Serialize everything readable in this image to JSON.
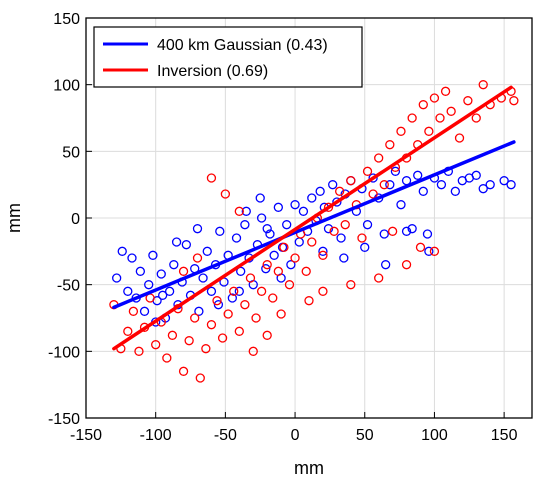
{
  "chart_data": {
    "type": "scatter",
    "xlabel": "mm",
    "ylabel": "mm",
    "xlim": [
      -150,
      170
    ],
    "ylim": [
      -150,
      150
    ],
    "xticks": [
      "-150",
      "-100",
      "-50",
      "0",
      "50",
      "100",
      "150"
    ],
    "yticks": [
      "150",
      "100",
      "50",
      "0",
      "-50",
      "-100",
      "-150"
    ],
    "grid": true,
    "legend_position": "top-left",
    "series": [
      {
        "name": "400 km Gaussian (0.43)",
        "color": "#0000ff",
        "fit_line": {
          "x": [
            -130,
            157
          ],
          "y": [
            -67,
            57
          ]
        },
        "points": [
          [
            -128,
            -45
          ],
          [
            -124,
            -25
          ],
          [
            -120,
            -55
          ],
          [
            -117,
            -30
          ],
          [
            -114,
            -60
          ],
          [
            -111,
            -40
          ],
          [
            -108,
            -70
          ],
          [
            -105,
            -50
          ],
          [
            -102,
            -28
          ],
          [
            -99,
            -62
          ],
          [
            -96,
            -42
          ],
          [
            -93,
            -75
          ],
          [
            -90,
            -55
          ],
          [
            -87,
            -35
          ],
          [
            -84,
            -65
          ],
          [
            -81,
            -48
          ],
          [
            -78,
            -20
          ],
          [
            -75,
            -58
          ],
          [
            -72,
            -38
          ],
          [
            -69,
            -70
          ],
          [
            -66,
            -45
          ],
          [
            -63,
            -25
          ],
          [
            -60,
            -55
          ],
          [
            -57,
            -35
          ],
          [
            -54,
            -10
          ],
          [
            -51,
            -48
          ],
          [
            -48,
            -28
          ],
          [
            -45,
            -60
          ],
          [
            -42,
            -15
          ],
          [
            -39,
            -40
          ],
          [
            -36,
            -5
          ],
          [
            -33,
            -30
          ],
          [
            -30,
            -50
          ],
          [
            -27,
            -20
          ],
          [
            -24,
            0
          ],
          [
            -21,
            -38
          ],
          [
            -18,
            -12
          ],
          [
            -15,
            -28
          ],
          [
            -12,
            8
          ],
          [
            -9,
            -22
          ],
          [
            -6,
            -5
          ],
          [
            -3,
            -35
          ],
          [
            0,
            10
          ],
          [
            3,
            -18
          ],
          [
            6,
            5
          ],
          [
            9,
            -10
          ],
          [
            12,
            15
          ],
          [
            15,
            -2
          ],
          [
            18,
            20
          ],
          [
            21,
            8
          ],
          [
            24,
            -8
          ],
          [
            27,
            25
          ],
          [
            30,
            12
          ],
          [
            33,
            -15
          ],
          [
            36,
            18
          ],
          [
            40,
            28
          ],
          [
            44,
            5
          ],
          [
            48,
            22
          ],
          [
            52,
            -5
          ],
          [
            56,
            30
          ],
          [
            60,
            15
          ],
          [
            64,
            -12
          ],
          [
            68,
            25
          ],
          [
            72,
            35
          ],
          [
            76,
            10
          ],
          [
            80,
            28
          ],
          [
            84,
            -8
          ],
          [
            88,
            32
          ],
          [
            92,
            20
          ],
          [
            96,
            -25
          ],
          [
            100,
            30
          ],
          [
            105,
            25
          ],
          [
            110,
            35
          ],
          [
            115,
            20
          ],
          [
            120,
            28
          ],
          [
            125,
            30
          ],
          [
            130,
            32
          ],
          [
            135,
            22
          ],
          [
            140,
            25
          ],
          [
            150,
            28
          ],
          [
            155,
            25
          ],
          [
            -100,
            -78
          ],
          [
            -95,
            -58
          ],
          [
            -85,
            -18
          ],
          [
            -70,
            -8
          ],
          [
            -55,
            -65
          ],
          [
            -40,
            -55
          ],
          [
            -25,
            15
          ],
          [
            -10,
            -45
          ],
          [
            20,
            -25
          ],
          [
            35,
            -30
          ],
          [
            50,
            -22
          ],
          [
            65,
            -35
          ],
          [
            80,
            -10
          ],
          [
            95,
            -12
          ],
          [
            -20,
            -8
          ],
          [
            -35,
            5
          ]
        ]
      },
      {
        "name": "Inversion (0.69)",
        "color": "#ff0000",
        "fit_line": {
          "x": [
            -130,
            155
          ],
          "y": [
            -98,
            98
          ]
        },
        "points": [
          [
            -130,
            -65
          ],
          [
            -125,
            -98
          ],
          [
            -120,
            -85
          ],
          [
            -116,
            -70
          ],
          [
            -112,
            -100
          ],
          [
            -108,
            -82
          ],
          [
            -104,
            -60
          ],
          [
            -100,
            -95
          ],
          [
            -96,
            -78
          ],
          [
            -92,
            -105
          ],
          [
            -88,
            -88
          ],
          [
            -84,
            -68
          ],
          [
            -80,
            -115
          ],
          [
            -76,
            -92
          ],
          [
            -72,
            -75
          ],
          [
            -68,
            -120
          ],
          [
            -64,
            -98
          ],
          [
            -60,
            -80
          ],
          [
            -56,
            -62
          ],
          [
            -52,
            -90
          ],
          [
            -48,
            -72
          ],
          [
            -44,
            -55
          ],
          [
            -40,
            -85
          ],
          [
            -36,
            -65
          ],
          [
            -32,
            -45
          ],
          [
            -28,
            -75
          ],
          [
            -24,
            -55
          ],
          [
            -20,
            -35
          ],
          [
            -16,
            -60
          ],
          [
            -12,
            -40
          ],
          [
            -8,
            -22
          ],
          [
            -4,
            -50
          ],
          [
            0,
            -30
          ],
          [
            4,
            -12
          ],
          [
            8,
            -40
          ],
          [
            12,
            -18
          ],
          [
            16,
            0
          ],
          [
            20,
            -28
          ],
          [
            24,
            8
          ],
          [
            28,
            -10
          ],
          [
            32,
            20
          ],
          [
            36,
            -5
          ],
          [
            40,
            28
          ],
          [
            44,
            10
          ],
          [
            48,
            -15
          ],
          [
            52,
            35
          ],
          [
            56,
            18
          ],
          [
            60,
            45
          ],
          [
            64,
            25
          ],
          [
            68,
            55
          ],
          [
            72,
            38
          ],
          [
            76,
            65
          ],
          [
            80,
            45
          ],
          [
            84,
            75
          ],
          [
            88,
            55
          ],
          [
            92,
            85
          ],
          [
            96,
            65
          ],
          [
            100,
            90
          ],
          [
            104,
            75
          ],
          [
            108,
            95
          ],
          [
            112,
            80
          ],
          [
            118,
            60
          ],
          [
            124,
            88
          ],
          [
            130,
            75
          ],
          [
            135,
            100
          ],
          [
            140,
            85
          ],
          [
            148,
            90
          ],
          [
            155,
            95
          ],
          [
            157,
            88
          ],
          [
            -60,
            30
          ],
          [
            -50,
            18
          ],
          [
            -40,
            5
          ],
          [
            -30,
            -100
          ],
          [
            -20,
            -88
          ],
          [
            -10,
            -72
          ],
          [
            10,
            -62
          ],
          [
            20,
            -55
          ],
          [
            40,
            -50
          ],
          [
            60,
            -45
          ],
          [
            80,
            -35
          ],
          [
            90,
            -22
          ],
          [
            100,
            -25
          ],
          [
            70,
            -10
          ],
          [
            -70,
            -30
          ],
          [
            -80,
            -40
          ]
        ]
      }
    ]
  }
}
